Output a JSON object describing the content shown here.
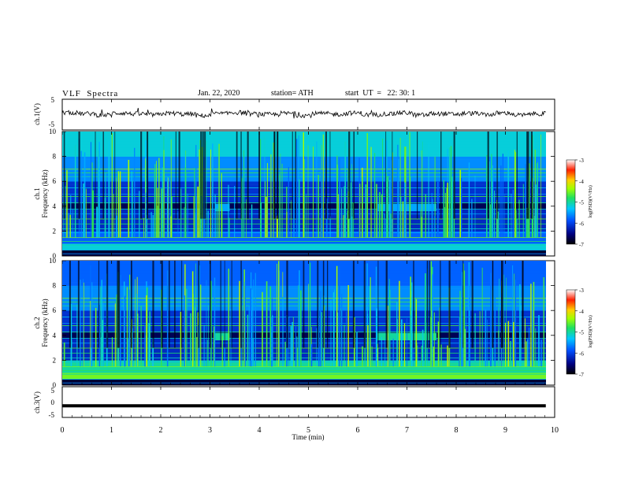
{
  "header": {
    "title": "VLF  Spectra",
    "date": "Jan. 22, 2020",
    "station": "station= ATH",
    "start": "start  UT  =   22: 30: 1"
  },
  "chart_data": [
    {
      "type": "line",
      "ylabel": "ch.1(V)",
      "ylim": [
        -5,
        5
      ],
      "yticks": [
        "5",
        "-5"
      ],
      "series": [
        {
          "values": [
            0.5,
            0.2,
            -0.3,
            0.4,
            0.1,
            -0.2,
            0.3,
            0.0,
            -0.5,
            0.2,
            0.6,
            0.1,
            -0.1,
            0.3,
            -0.4,
            0.2,
            0.0,
            0.4,
            -0.2,
            0.1,
            0.5,
            -0.3,
            0.2,
            0.0,
            0.3,
            -0.1,
            0.4,
            -0.3,
            0.2,
            0.1
          ]
        }
      ]
    },
    {
      "type": "heatmap",
      "ylabel": "ch.1\nFrequency  (kHz)",
      "yticks": [
        "0",
        "2",
        "4",
        "6",
        "8",
        "10"
      ],
      "ylim": [
        0,
        10
      ],
      "xlim": [
        0,
        10
      ],
      "colorbar": {
        "label": "log(PSD)(V²/Hz)",
        "ticks": [
          "-3",
          "-4",
          "-5",
          "-6",
          "-7"
        ],
        "range": [
          -7,
          -3
        ]
      }
    },
    {
      "type": "heatmap",
      "ylabel": "ch.2\nFrequency  (kHz)",
      "yticks": [
        "0",
        "2",
        "4",
        "6",
        "8",
        "10"
      ],
      "ylim": [
        0,
        10
      ],
      "xlim": [
        0,
        10
      ],
      "colorbar": {
        "label": "log(PSD)(V²/Hz)",
        "ticks": [
          "-3",
          "-4",
          "-5",
          "-6",
          "-7"
        ],
        "range": [
          -7,
          -3
        ]
      }
    },
    {
      "type": "line",
      "ylabel": "ch.3(V)",
      "ylim": [
        -5,
        5
      ],
      "yticks": [
        "5",
        "0",
        "-5"
      ],
      "series": [
        {
          "values": [
            -1.5,
            -1.5
          ]
        }
      ]
    }
  ],
  "xaxis": {
    "label": "Time  (min)",
    "ticks": [
      "0",
      "1",
      "2",
      "3",
      "4",
      "5",
      "6",
      "7",
      "8",
      "9",
      "10"
    ]
  }
}
